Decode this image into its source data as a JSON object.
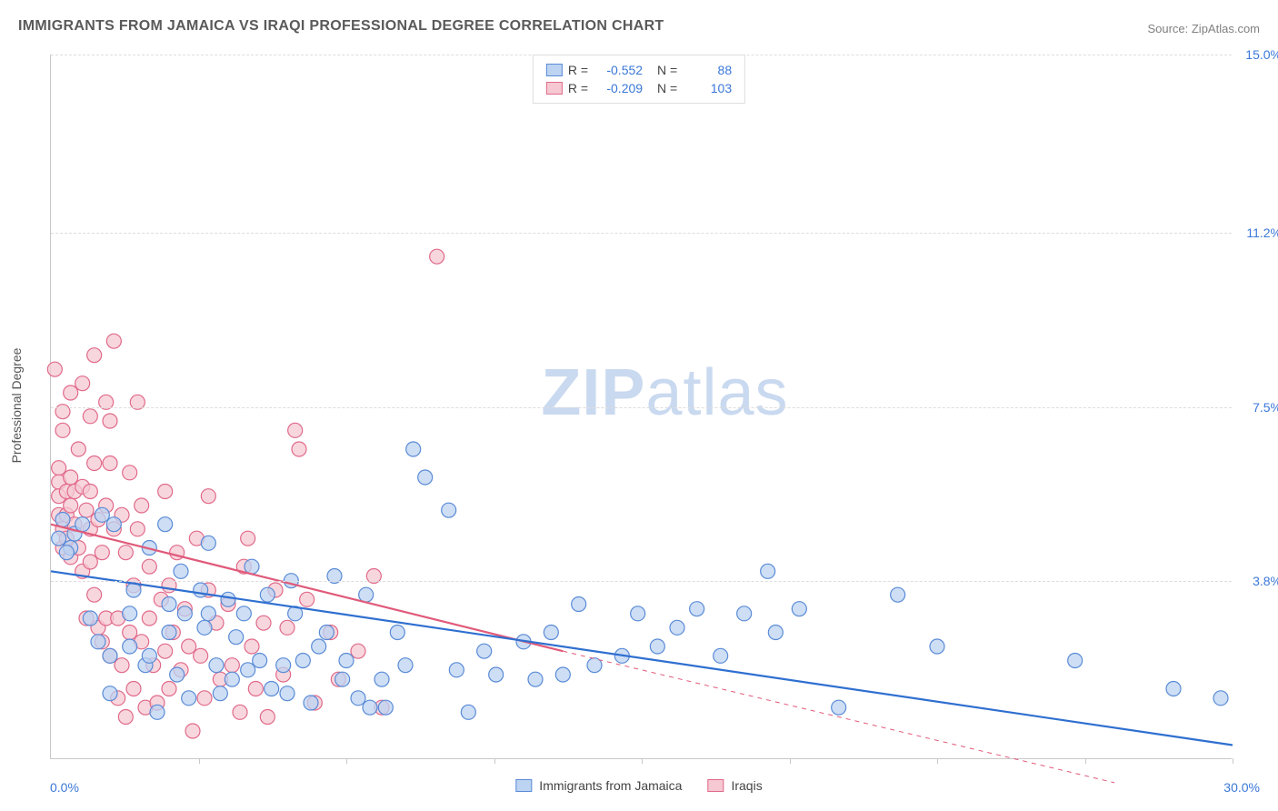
{
  "title": "IMMIGRANTS FROM JAMAICA VS IRAQI PROFESSIONAL DEGREE CORRELATION CHART",
  "source": "Source: ZipAtlas.com",
  "yaxis_title": "Professional Degree",
  "watermark_a": "ZIP",
  "watermark_b": "atlas",
  "watermark_color": "#c9d9ef",
  "chart": {
    "type": "scatter",
    "xlim": [
      0,
      30
    ],
    "ylim": [
      0,
      15
    ],
    "x_corner_min": "0.0%",
    "x_corner_max": "30.0%",
    "y_ticks": [
      {
        "v": 3.8,
        "label": "3.8%"
      },
      {
        "v": 7.5,
        "label": "7.5%"
      },
      {
        "v": 11.2,
        "label": "11.2%"
      },
      {
        "v": 15.0,
        "label": "15.0%"
      }
    ],
    "x_minor_ticks": [
      3.75,
      7.5,
      11.25,
      15,
      18.75,
      22.5,
      26.25,
      30
    ],
    "grid_color": "#dddddd",
    "axis_label_color": "#3b78d8",
    "background_color": "#ffffff",
    "marker_radius": 8,
    "marker_stroke_width": 1.2,
    "line_width": 2.2,
    "series": [
      {
        "id": "jamaica",
        "label": "Immigrants from Jamaica",
        "fill": "#bcd3f2",
        "stroke": "#5a8bd6",
        "line_color": "#2f6fd0",
        "R": "-0.552",
        "N": "88",
        "trend": {
          "x1": 0,
          "y1": 4.0,
          "x2": 30,
          "y2": 0.3
        },
        "points": [
          [
            0.2,
            4.7
          ],
          [
            0.3,
            5.1
          ],
          [
            0.5,
            4.5
          ],
          [
            0.6,
            4.8
          ],
          [
            0.8,
            5.0
          ],
          [
            0.4,
            4.4
          ],
          [
            1.0,
            3.0
          ],
          [
            1.2,
            2.5
          ],
          [
            1.5,
            1.4
          ],
          [
            1.5,
            2.2
          ],
          [
            1.3,
            5.2
          ],
          [
            1.6,
            5.0
          ],
          [
            2.0,
            3.1
          ],
          [
            2.0,
            2.4
          ],
          [
            2.1,
            3.6
          ],
          [
            2.4,
            2.0
          ],
          [
            2.5,
            4.5
          ],
          [
            2.5,
            2.2
          ],
          [
            2.7,
            1.0
          ],
          [
            2.9,
            5.0
          ],
          [
            3.0,
            3.3
          ],
          [
            3.0,
            2.7
          ],
          [
            3.2,
            1.8
          ],
          [
            3.3,
            4.0
          ],
          [
            3.4,
            3.1
          ],
          [
            3.5,
            1.3
          ],
          [
            3.8,
            3.6
          ],
          [
            3.9,
            2.8
          ],
          [
            4.0,
            4.6
          ],
          [
            4.0,
            3.1
          ],
          [
            4.2,
            2.0
          ],
          [
            4.3,
            1.4
          ],
          [
            4.5,
            3.4
          ],
          [
            4.6,
            1.7
          ],
          [
            4.9,
            3.1
          ],
          [
            5.0,
            1.9
          ],
          [
            5.1,
            4.1
          ],
          [
            5.3,
            2.1
          ],
          [
            5.5,
            3.5
          ],
          [
            5.6,
            1.5
          ],
          [
            5.9,
            2.0
          ],
          [
            6.0,
            1.4
          ],
          [
            6.1,
            3.8
          ],
          [
            6.2,
            3.1
          ],
          [
            6.4,
            2.1
          ],
          [
            6.6,
            1.2
          ],
          [
            6.8,
            2.4
          ],
          [
            7.0,
            2.7
          ],
          [
            7.2,
            3.9
          ],
          [
            7.4,
            1.7
          ],
          [
            7.5,
            2.1
          ],
          [
            7.8,
            1.3
          ],
          [
            8.0,
            3.5
          ],
          [
            8.1,
            1.1
          ],
          [
            8.4,
            1.7
          ],
          [
            8.5,
            1.1
          ],
          [
            8.8,
            2.7
          ],
          [
            9.0,
            2.0
          ],
          [
            9.2,
            6.6
          ],
          [
            9.5,
            6.0
          ],
          [
            10.1,
            5.3
          ],
          [
            10.3,
            1.9
          ],
          [
            10.6,
            1.0
          ],
          [
            11.0,
            2.3
          ],
          [
            11.3,
            1.8
          ],
          [
            12.0,
            2.5
          ],
          [
            12.3,
            1.7
          ],
          [
            12.7,
            2.7
          ],
          [
            13.0,
            1.8
          ],
          [
            13.4,
            3.3
          ],
          [
            13.8,
            2.0
          ],
          [
            14.5,
            2.2
          ],
          [
            14.9,
            3.1
          ],
          [
            15.4,
            2.4
          ],
          [
            15.9,
            2.8
          ],
          [
            16.4,
            3.2
          ],
          [
            17.0,
            2.2
          ],
          [
            17.6,
            3.1
          ],
          [
            18.2,
            4.0
          ],
          [
            18.4,
            2.7
          ],
          [
            19.0,
            3.2
          ],
          [
            20.0,
            1.1
          ],
          [
            21.5,
            3.5
          ],
          [
            22.5,
            2.4
          ],
          [
            26.0,
            2.1
          ],
          [
            28.5,
            1.5
          ],
          [
            29.7,
            1.3
          ],
          [
            4.7,
            2.6
          ]
        ]
      },
      {
        "id": "iraqis",
        "label": "Iraqis",
        "fill": "#f6c8d1",
        "stroke": "#e06a8a",
        "line_color": "#e05a7a",
        "R": "-0.209",
        "N": "103",
        "trend": {
          "x1": 0,
          "y1": 5.0,
          "x2": 13,
          "y2": 2.3
        },
        "trend_dash": {
          "x1": 13,
          "y1": 2.3,
          "x2": 27,
          "y2": -0.5
        },
        "points": [
          [
            0.1,
            8.3
          ],
          [
            0.2,
            6.2
          ],
          [
            0.2,
            5.9
          ],
          [
            0.2,
            5.6
          ],
          [
            0.2,
            5.2
          ],
          [
            0.3,
            7.4
          ],
          [
            0.3,
            7.0
          ],
          [
            0.3,
            4.9
          ],
          [
            0.3,
            4.5
          ],
          [
            0.4,
            5.7
          ],
          [
            0.4,
            5.2
          ],
          [
            0.4,
            4.7
          ],
          [
            0.5,
            7.8
          ],
          [
            0.5,
            6.0
          ],
          [
            0.5,
            5.4
          ],
          [
            0.5,
            4.3
          ],
          [
            0.6,
            5.7
          ],
          [
            0.6,
            5.0
          ],
          [
            0.7,
            6.6
          ],
          [
            0.7,
            4.5
          ],
          [
            0.8,
            8.0
          ],
          [
            0.8,
            5.8
          ],
          [
            0.8,
            4.0
          ],
          [
            0.9,
            5.3
          ],
          [
            0.9,
            3.0
          ],
          [
            1.0,
            7.3
          ],
          [
            1.0,
            5.7
          ],
          [
            1.0,
            4.9
          ],
          [
            1.0,
            4.2
          ],
          [
            1.1,
            8.6
          ],
          [
            1.1,
            6.3
          ],
          [
            1.1,
            3.5
          ],
          [
            1.2,
            2.8
          ],
          [
            1.2,
            5.1
          ],
          [
            1.3,
            4.4
          ],
          [
            1.3,
            2.5
          ],
          [
            1.4,
            7.6
          ],
          [
            1.4,
            5.4
          ],
          [
            1.4,
            3.0
          ],
          [
            1.5,
            7.2
          ],
          [
            1.5,
            2.2
          ],
          [
            1.5,
            6.3
          ],
          [
            1.6,
            4.9
          ],
          [
            1.6,
            8.9
          ],
          [
            1.7,
            3.0
          ],
          [
            1.7,
            1.3
          ],
          [
            1.8,
            5.2
          ],
          [
            1.8,
            2.0
          ],
          [
            1.9,
            4.4
          ],
          [
            1.9,
            0.9
          ],
          [
            2.0,
            6.1
          ],
          [
            2.0,
            2.7
          ],
          [
            2.1,
            3.7
          ],
          [
            2.1,
            1.5
          ],
          [
            2.2,
            7.6
          ],
          [
            2.2,
            4.9
          ],
          [
            2.3,
            5.4
          ],
          [
            2.3,
            2.5
          ],
          [
            2.4,
            1.1
          ],
          [
            2.5,
            4.1
          ],
          [
            2.5,
            3.0
          ],
          [
            2.6,
            2.0
          ],
          [
            2.7,
            1.2
          ],
          [
            2.8,
            3.4
          ],
          [
            2.9,
            2.3
          ],
          [
            2.9,
            5.7
          ],
          [
            3.0,
            3.7
          ],
          [
            3.0,
            1.5
          ],
          [
            3.1,
            2.7
          ],
          [
            3.2,
            4.4
          ],
          [
            3.3,
            1.9
          ],
          [
            3.4,
            3.2
          ],
          [
            3.5,
            2.4
          ],
          [
            3.6,
            0.6
          ],
          [
            3.7,
            4.7
          ],
          [
            3.8,
            2.2
          ],
          [
            3.9,
            1.3
          ],
          [
            4.0,
            5.6
          ],
          [
            4.0,
            3.6
          ],
          [
            4.2,
            2.9
          ],
          [
            4.3,
            1.7
          ],
          [
            4.5,
            3.3
          ],
          [
            4.6,
            2.0
          ],
          [
            4.8,
            1.0
          ],
          [
            4.9,
            4.1
          ],
          [
            5.0,
            4.7
          ],
          [
            5.1,
            2.4
          ],
          [
            5.2,
            1.5
          ],
          [
            5.4,
            2.9
          ],
          [
            5.5,
            0.9
          ],
          [
            5.7,
            3.6
          ],
          [
            5.9,
            1.8
          ],
          [
            6.0,
            2.8
          ],
          [
            6.2,
            7.0
          ],
          [
            6.3,
            6.6
          ],
          [
            6.5,
            3.4
          ],
          [
            6.7,
            1.2
          ],
          [
            7.1,
            2.7
          ],
          [
            7.3,
            1.7
          ],
          [
            7.8,
            2.3
          ],
          [
            8.2,
            3.9
          ],
          [
            8.4,
            1.1
          ],
          [
            9.8,
            10.7
          ]
        ]
      }
    ]
  },
  "legend": {
    "R_label": "R =",
    "N_label": "N ="
  },
  "bottom_legend": {
    "series1_label": "Immigrants from Jamaica",
    "series2_label": "Iraqis"
  }
}
